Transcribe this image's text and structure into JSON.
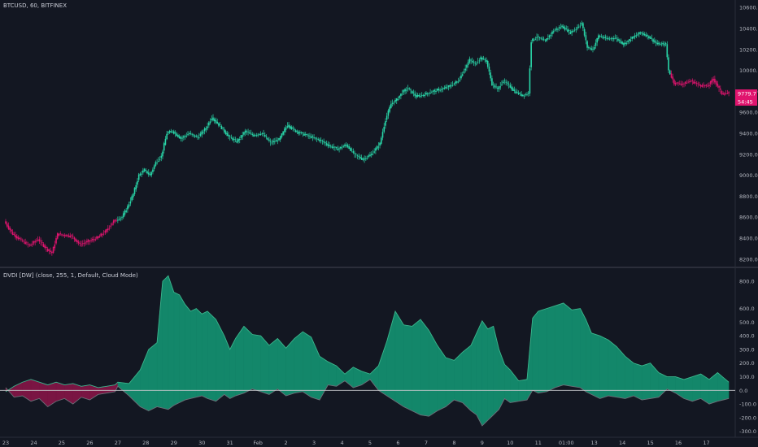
{
  "symbol_label": "BTCUSD, 60, BITFINEX",
  "indicator_label": "DVDI [DW] (close, 255, 1, Default, Cloud Mode)",
  "colors": {
    "background": "#131722",
    "bull": "#29d6a8",
    "bear": "#e0146e",
    "cloud_bull": "#13876a",
    "cloud_bear": "#7a1543",
    "grid_line": "#c8c9cc",
    "price_badge": "#e0146e"
  },
  "price_badges": {
    "last_price": "9779.7",
    "countdown": "54:45"
  },
  "chart_data": [
    {
      "type": "candlestick",
      "title": "BTCUSD, 60, BITFINEX",
      "ylim": [
        8160,
        10640
      ],
      "y_ticks": [
        "10600.0",
        "10400.0",
        "10200.0",
        "10000.0",
        "9800.0",
        "9600.0",
        "9400.0",
        "9200.0",
        "9000.0",
        "8800.0",
        "8600.0",
        "8400.0",
        "8200.0"
      ],
      "x_ticks": [
        "23",
        "24",
        "25",
        "26",
        "27",
        "28",
        "29",
        "30",
        "31",
        "Feb",
        "2",
        "3",
        "4",
        "5",
        "6",
        "7",
        "8",
        "9",
        "10",
        "11",
        "01:00",
        "13",
        "14",
        "15",
        "16",
        "17"
      ],
      "close_path": [
        [
          23,
          8560
        ],
        [
          23.3,
          8440
        ],
        [
          23.6,
          8380
        ],
        [
          23.9,
          8330
        ],
        [
          24.2,
          8390
        ],
        [
          24.5,
          8300
        ],
        [
          24.7,
          8260
        ],
        [
          24.9,
          8440
        ],
        [
          25.1,
          8430
        ],
        [
          25.4,
          8420
        ],
        [
          25.7,
          8340
        ],
        [
          26.0,
          8370
        ],
        [
          26.3,
          8400
        ],
        [
          26.6,
          8460
        ],
        [
          26.9,
          8560
        ],
        [
          27.2,
          8600
        ],
        [
          27.4,
          8700
        ],
        [
          27.6,
          8820
        ],
        [
          27.8,
          9000
        ],
        [
          28.0,
          9050
        ],
        [
          28.2,
          9000
        ],
        [
          28.4,
          9120
        ],
        [
          28.6,
          9180
        ],
        [
          28.8,
          9400
        ],
        [
          29.0,
          9420
        ],
        [
          29.3,
          9350
        ],
        [
          29.6,
          9400
        ],
        [
          29.9,
          9360
        ],
        [
          30.2,
          9450
        ],
        [
          30.4,
          9550
        ],
        [
          30.7,
          9470
        ],
        [
          31.0,
          9370
        ],
        [
          31.3,
          9320
        ],
        [
          31.6,
          9420
        ],
        [
          31.9,
          9380
        ],
        [
          32.2,
          9400
        ],
        [
          32.5,
          9310
        ],
        [
          32.8,
          9340
        ],
        [
          33.1,
          9480
        ],
        [
          33.4,
          9420
        ],
        [
          33.7,
          9390
        ],
        [
          34.0,
          9360
        ],
        [
          34.3,
          9330
        ],
        [
          34.6,
          9280
        ],
        [
          34.9,
          9250
        ],
        [
          35.2,
          9290
        ],
        [
          35.5,
          9200
        ],
        [
          35.8,
          9150
        ],
        [
          36.1,
          9200
        ],
        [
          36.4,
          9300
        ],
        [
          36.6,
          9530
        ],
        [
          36.8,
          9680
        ],
        [
          37.0,
          9720
        ],
        [
          37.2,
          9790
        ],
        [
          37.4,
          9830
        ],
        [
          37.7,
          9750
        ],
        [
          38.0,
          9770
        ],
        [
          38.3,
          9800
        ],
        [
          38.6,
          9820
        ],
        [
          38.9,
          9850
        ],
        [
          39.2,
          9900
        ],
        [
          39.4,
          10000
        ],
        [
          39.6,
          10100
        ],
        [
          39.8,
          10060
        ],
        [
          40.0,
          10120
        ],
        [
          40.2,
          10090
        ],
        [
          40.4,
          9870
        ],
        [
          40.6,
          9820
        ],
        [
          40.8,
          9900
        ],
        [
          41.0,
          9860
        ],
        [
          41.2,
          9800
        ],
        [
          41.5,
          9760
        ],
        [
          41.7,
          9780
        ],
        [
          41.8,
          10280
        ],
        [
          42.0,
          10320
        ],
        [
          42.3,
          10280
        ],
        [
          42.6,
          10380
        ],
        [
          42.9,
          10420
        ],
        [
          43.2,
          10360
        ],
        [
          43.4,
          10400
        ],
        [
          43.6,
          10450
        ],
        [
          43.8,
          10220
        ],
        [
          44.0,
          10200
        ],
        [
          44.2,
          10330
        ],
        [
          44.5,
          10300
        ],
        [
          44.8,
          10310
        ],
        [
          45.1,
          10250
        ],
        [
          45.4,
          10310
        ],
        [
          45.7,
          10360
        ],
        [
          46.0,
          10320
        ],
        [
          46.3,
          10250
        ],
        [
          46.6,
          10250
        ],
        [
          46.7,
          10000
        ],
        [
          46.9,
          9880
        ],
        [
          47.2,
          9870
        ],
        [
          47.5,
          9900
        ],
        [
          47.8,
          9860
        ],
        [
          48.1,
          9850
        ],
        [
          48.3,
          9920
        ],
        [
          48.6,
          9780
        ],
        [
          48.8,
          9780
        ]
      ],
      "bear_ranges": [
        [
          23,
          27.0
        ],
        [
          46.7,
          48.8
        ]
      ]
    },
    {
      "type": "area",
      "title": "DVDI [DW] (close, 255, 1, Default, Cloud Mode)",
      "ylim": [
        -320,
        860
      ],
      "y_ticks": [
        "800.0",
        "600.0",
        "500.0",
        "400.0",
        "300.0",
        "200.0",
        "100.0",
        "0.0",
        "-100.0",
        "-200.0",
        "-300.0"
      ],
      "series": [
        {
          "values": [
            [
              23,
              -10
            ],
            [
              23.3,
              30
            ],
            [
              23.6,
              60
            ],
            [
              23.9,
              80
            ],
            [
              24.2,
              60
            ],
            [
              24.5,
              40
            ],
            [
              24.8,
              60
            ],
            [
              25.1,
              40
            ],
            [
              25.4,
              50
            ],
            [
              25.7,
              30
            ],
            [
              26.0,
              40
            ],
            [
              26.3,
              20
            ],
            [
              26.6,
              30
            ],
            [
              26.9,
              40
            ],
            [
              27.0,
              60
            ],
            [
              27.4,
              50
            ],
            [
              27.8,
              150
            ],
            [
              28.1,
              300
            ],
            [
              28.4,
              350
            ],
            [
              28.6,
              800
            ],
            [
              28.8,
              840
            ],
            [
              29.0,
              720
            ],
            [
              29.2,
              700
            ],
            [
              29.4,
              630
            ],
            [
              29.6,
              580
            ],
            [
              29.8,
              600
            ],
            [
              30.0,
              560
            ],
            [
              30.2,
              580
            ],
            [
              30.5,
              520
            ],
            [
              30.8,
              400
            ],
            [
              31.0,
              300
            ],
            [
              31.2,
              380
            ],
            [
              31.5,
              470
            ],
            [
              31.8,
              410
            ],
            [
              32.1,
              400
            ],
            [
              32.4,
              330
            ],
            [
              32.7,
              380
            ],
            [
              33.0,
              310
            ],
            [
              33.3,
              380
            ],
            [
              33.6,
              430
            ],
            [
              33.9,
              390
            ],
            [
              34.2,
              250
            ],
            [
              34.5,
              210
            ],
            [
              34.8,
              180
            ],
            [
              35.1,
              120
            ],
            [
              35.4,
              170
            ],
            [
              35.7,
              140
            ],
            [
              36.0,
              120
            ],
            [
              36.3,
              180
            ],
            [
              36.6,
              360
            ],
            [
              36.9,
              580
            ],
            [
              37.2,
              480
            ],
            [
              37.5,
              470
            ],
            [
              37.8,
              520
            ],
            [
              38.1,
              440
            ],
            [
              38.4,
              330
            ],
            [
              38.7,
              240
            ],
            [
              39.0,
              220
            ],
            [
              39.3,
              280
            ],
            [
              39.6,
              330
            ],
            [
              39.8,
              420
            ],
            [
              40.0,
              510
            ],
            [
              40.2,
              450
            ],
            [
              40.4,
              470
            ],
            [
              40.6,
              300
            ],
            [
              40.8,
              190
            ],
            [
              41.0,
              150
            ],
            [
              41.3,
              70
            ],
            [
              41.6,
              80
            ],
            [
              41.8,
              530
            ],
            [
              42.0,
              580
            ],
            [
              42.3,
              600
            ],
            [
              42.6,
              620
            ],
            [
              42.9,
              640
            ],
            [
              43.2,
              590
            ],
            [
              43.5,
              600
            ],
            [
              43.7,
              520
            ],
            [
              43.9,
              420
            ],
            [
              44.2,
              400
            ],
            [
              44.5,
              370
            ],
            [
              44.8,
              320
            ],
            [
              45.1,
              250
            ],
            [
              45.4,
              200
            ],
            [
              45.7,
              180
            ],
            [
              46.0,
              200
            ],
            [
              46.3,
              130
            ],
            [
              46.6,
              100
            ],
            [
              46.9,
              100
            ],
            [
              47.2,
              80
            ],
            [
              47.5,
              100
            ],
            [
              47.8,
              120
            ],
            [
              48.1,
              80
            ],
            [
              48.4,
              130
            ],
            [
              48.8,
              60
            ]
          ]
        },
        {
          "values": [
            [
              23,
              20
            ],
            [
              23.3,
              -50
            ],
            [
              23.6,
              -40
            ],
            [
              23.9,
              -80
            ],
            [
              24.2,
              -60
            ],
            [
              24.5,
              -120
            ],
            [
              24.8,
              -80
            ],
            [
              25.1,
              -60
            ],
            [
              25.4,
              -100
            ],
            [
              25.7,
              -50
            ],
            [
              26.0,
              -70
            ],
            [
              26.3,
              -30
            ],
            [
              26.6,
              -20
            ],
            [
              26.9,
              -10
            ],
            [
              27.0,
              30
            ],
            [
              27.4,
              -40
            ],
            [
              27.8,
              -120
            ],
            [
              28.1,
              -150
            ],
            [
              28.4,
              -120
            ],
            [
              28.6,
              -130
            ],
            [
              28.8,
              -140
            ],
            [
              29.0,
              -110
            ],
            [
              29.2,
              -90
            ],
            [
              29.4,
              -70
            ],
            [
              29.6,
              -60
            ],
            [
              29.8,
              -50
            ],
            [
              30.0,
              -40
            ],
            [
              30.2,
              -60
            ],
            [
              30.5,
              -80
            ],
            [
              30.8,
              -30
            ],
            [
              31.0,
              -60
            ],
            [
              31.2,
              -40
            ],
            [
              31.5,
              -20
            ],
            [
              31.8,
              10
            ],
            [
              32.1,
              -10
            ],
            [
              32.4,
              -30
            ],
            [
              32.7,
              10
            ],
            [
              33.0,
              -40
            ],
            [
              33.3,
              -20
            ],
            [
              33.6,
              -10
            ],
            [
              33.9,
              -50
            ],
            [
              34.2,
              -70
            ],
            [
              34.5,
              40
            ],
            [
              34.8,
              30
            ],
            [
              35.1,
              70
            ],
            [
              35.4,
              20
            ],
            [
              35.7,
              40
            ],
            [
              36.0,
              80
            ],
            [
              36.3,
              0
            ],
            [
              36.6,
              -40
            ],
            [
              36.9,
              -80
            ],
            [
              37.2,
              -120
            ],
            [
              37.5,
              -150
            ],
            [
              37.8,
              -180
            ],
            [
              38.1,
              -190
            ],
            [
              38.4,
              -150
            ],
            [
              38.7,
              -120
            ],
            [
              39.0,
              -70
            ],
            [
              39.3,
              -90
            ],
            [
              39.6,
              -150
            ],
            [
              39.8,
              -180
            ],
            [
              40.0,
              -260
            ],
            [
              40.2,
              -220
            ],
            [
              40.4,
              -180
            ],
            [
              40.6,
              -140
            ],
            [
              40.8,
              -60
            ],
            [
              41.0,
              -90
            ],
            [
              41.3,
              -80
            ],
            [
              41.6,
              -70
            ],
            [
              41.8,
              0
            ],
            [
              42.0,
              -20
            ],
            [
              42.3,
              -10
            ],
            [
              42.6,
              20
            ],
            [
              42.9,
              40
            ],
            [
              43.2,
              30
            ],
            [
              43.5,
              20
            ],
            [
              43.7,
              -10
            ],
            [
              43.9,
              -30
            ],
            [
              44.2,
              -60
            ],
            [
              44.5,
              -40
            ],
            [
              44.8,
              -50
            ],
            [
              45.1,
              -60
            ],
            [
              45.4,
              -40
            ],
            [
              45.7,
              -70
            ],
            [
              46.0,
              -60
            ],
            [
              46.3,
              -50
            ],
            [
              46.6,
              10
            ],
            [
              46.9,
              -20
            ],
            [
              47.2,
              -60
            ],
            [
              47.5,
              -80
            ],
            [
              47.8,
              -60
            ],
            [
              48.1,
              -100
            ],
            [
              48.4,
              -80
            ],
            [
              48.8,
              -60
            ]
          ]
        }
      ],
      "zero_line": 0
    }
  ]
}
